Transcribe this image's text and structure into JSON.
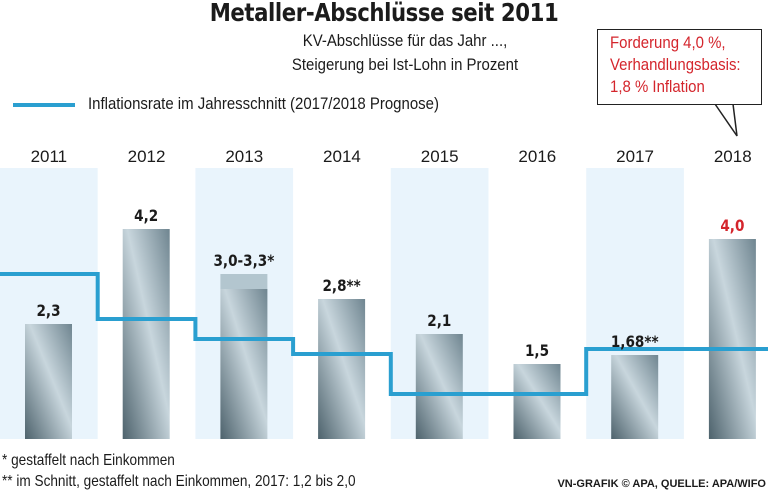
{
  "chart_data": {
    "type": "bar",
    "title": "Metaller-Abschlüsse seit 2011",
    "subtitle": [
      "KV-Abschlüsse für das Jahr ...,",
      "Steigerung bei Ist-Lohn in Prozent"
    ],
    "categories": [
      "2011",
      "2012",
      "2013",
      "2014",
      "2015",
      "2016",
      "2017",
      "2018"
    ],
    "series": [
      {
        "values": [
          2.3,
          4.2,
          3.0,
          2.8,
          2.1,
          1.5,
          1.68,
          4.0
        ],
        "range_upper": [
          null,
          null,
          3.3,
          null,
          null,
          null,
          null,
          null
        ]
      },
      {
        "name": "Inflationsrate im Jahresschnitt (2017/2018 Prognose)",
        "type": "step-line",
        "values": [
          3.3,
          2.4,
          2.0,
          1.7,
          0.9,
          0.9,
          1.8,
          1.8
        ]
      }
    ],
    "data_labels": [
      "2,3",
      "4,2",
      "3,0-3,3*",
      "2,8**",
      "2,1",
      "1,5",
      "1,68**",
      "4,0"
    ],
    "highlight_category": "2018",
    "ylim": [
      0,
      4.5
    ],
    "grid": false,
    "legend_placement": "top-left",
    "colors": {
      "bar_dark": "#4d626c",
      "bar_light": "#c8d6dd",
      "inflation_line": "#2a9fd0",
      "band": "#e9f4fc",
      "highlight": "#d4252c"
    }
  },
  "callout": [
    "Forderung 4,0 %,",
    "Verhandlungsbasis:",
    "1,8 % Inflation"
  ],
  "footnotes": [
    "*  gestaffelt nach Einkommen",
    "**  im Schnitt, gestaffelt nach Einkommen, 2017: 1,2 bis 2,0"
  ],
  "credit": "VN-GRAFIK © APA, QUELLE: APA/WIFO"
}
